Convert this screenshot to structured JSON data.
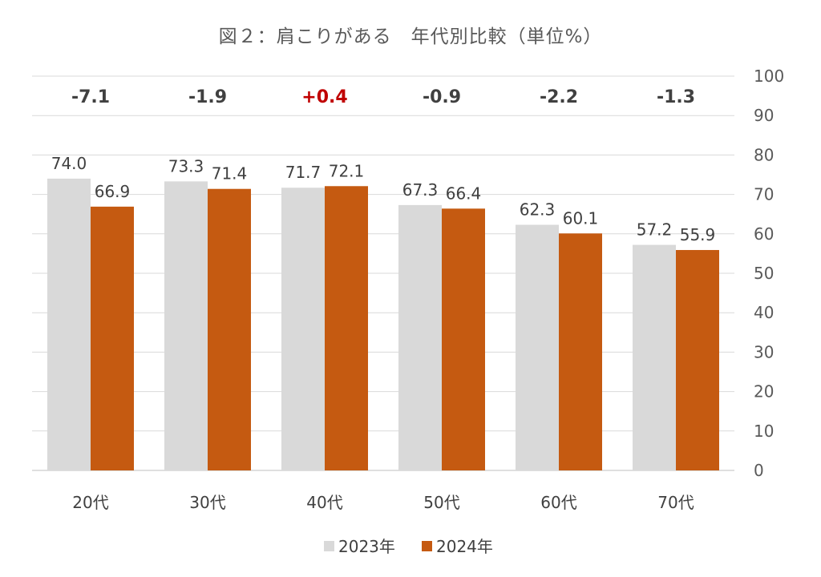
{
  "chart_data": {
    "type": "bar",
    "title": "図２：肩こりがある　年代別比較（単位%）",
    "categories": [
      "20代",
      "30代",
      "40代",
      "50代",
      "60代",
      "70代"
    ],
    "series": [
      {
        "name": "2023年",
        "color": "#d9d9d9",
        "values": [
          74.0,
          73.3,
          71.7,
          67.3,
          62.3,
          57.2
        ]
      },
      {
        "name": "2024年",
        "color": "#c55a11",
        "values": [
          66.9,
          71.4,
          72.1,
          66.4,
          60.1,
          55.9
        ]
      }
    ],
    "differences": [
      "-7.1",
      "-1.9",
      "+0.4",
      "-0.9",
      "-2.2",
      "-1.3"
    ],
    "difference_colors": [
      "#404040",
      "#404040",
      "#c00000",
      "#404040",
      "#404040",
      "#404040"
    ],
    "y_ticks": [
      "0",
      "10",
      "20",
      "30",
      "40",
      "50",
      "60",
      "70",
      "80",
      "90",
      "100"
    ],
    "ylim": [
      0,
      100
    ],
    "y_axis_side": "right",
    "legend_position": "bottom-center",
    "xlabel": "",
    "ylabel": ""
  }
}
